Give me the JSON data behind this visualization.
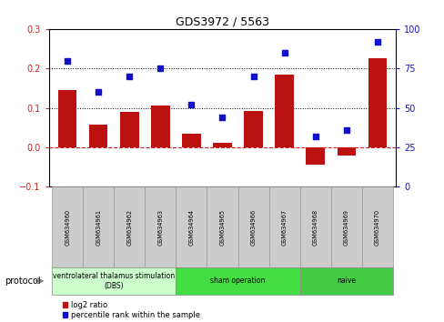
{
  "title": "GDS3972 / 5563",
  "samples": [
    "GSM634960",
    "GSM634961",
    "GSM634962",
    "GSM634963",
    "GSM634964",
    "GSM634965",
    "GSM634966",
    "GSM634967",
    "GSM634968",
    "GSM634969",
    "GSM634970"
  ],
  "log2_ratio": [
    0.145,
    0.058,
    0.09,
    0.107,
    0.035,
    0.012,
    0.092,
    0.185,
    -0.045,
    -0.022,
    0.225
  ],
  "percentile_rank": [
    80,
    60,
    70,
    75,
    52,
    44,
    70,
    85,
    32,
    36,
    92
  ],
  "bar_color": "#bb1111",
  "dot_color": "#1111cc",
  "ylim_left": [
    -0.1,
    0.3
  ],
  "ylim_right": [
    0,
    100
  ],
  "yticks_left": [
    -0.1,
    0.0,
    0.1,
    0.2,
    0.3
  ],
  "yticks_right": [
    0,
    25,
    50,
    75,
    100
  ],
  "hlines": [
    0.1,
    0.2
  ],
  "zero_line_color": "#cc2222",
  "protocol_groups": [
    {
      "label": "ventrolateral thalamus stimulation\n(DBS)",
      "start": 0,
      "end": 3,
      "color": "#ccffcc"
    },
    {
      "label": "sham operation",
      "start": 4,
      "end": 7,
      "color": "#44dd44"
    },
    {
      "label": "naive",
      "start": 8,
      "end": 10,
      "color": "#44cc44"
    }
  ],
  "legend_red_label": "log2 ratio",
  "legend_blue_label": "percentile rank within the sample",
  "protocol_label": "protocol",
  "bg_color": "#ffffff",
  "tick_label_color_left": "#cc2222",
  "tick_label_color_right": "#1111cc",
  "sample_box_color": "#cccccc",
  "sample_box_edge": "#999999"
}
